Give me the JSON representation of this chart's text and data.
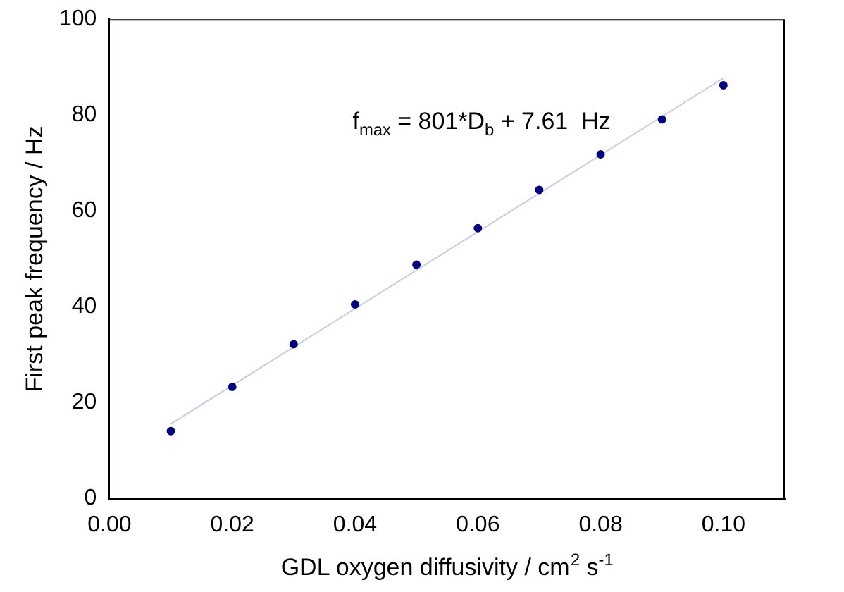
{
  "chart_data": {
    "type": "scatter",
    "xlabel": "GDL oxygen diffusivity / cm$^{2}$ s$^{-1}$",
    "ylabel": "First peak frequency / Hz",
    "x": [
      0.01,
      0.02,
      0.03,
      0.04,
      0.05,
      0.06,
      0.07,
      0.08,
      0.09,
      0.1
    ],
    "series": [
      {
        "type": "scatter",
        "color": "#000080",
        "values": [
          14.1,
          23.3,
          32.2,
          40.5,
          48.8,
          56.4,
          64.4,
          71.8,
          79.1,
          86.2
        ]
      },
      {
        "type": "line",
        "marker": "none",
        "color": "#c8cce0",
        "x": [
          0.01,
          0.1
        ],
        "values": [
          15.6,
          87.7
        ]
      }
    ],
    "annotations": [
      "f$_{max}$ = 801*D$_{b}$ + 7.61  Hz"
    ],
    "xlim": [
      0,
      0.11
    ],
    "xticks": [
      {
        "value": 0,
        "label": "0.00"
      },
      {
        "value": 0.02,
        "label": "0.02"
      },
      {
        "value": 0.04,
        "label": "0.04"
      },
      {
        "value": 0.06,
        "label": "0.06"
      },
      {
        "value": 0.08,
        "label": "0.08"
      },
      {
        "value": 0.1,
        "label": "0.10"
      }
    ],
    "ylim": [
      0,
      100
    ],
    "yticks": [
      0,
      20,
      40,
      60,
      80,
      100
    ],
    "marker": "circle",
    "grid": false,
    "legend": false
  }
}
